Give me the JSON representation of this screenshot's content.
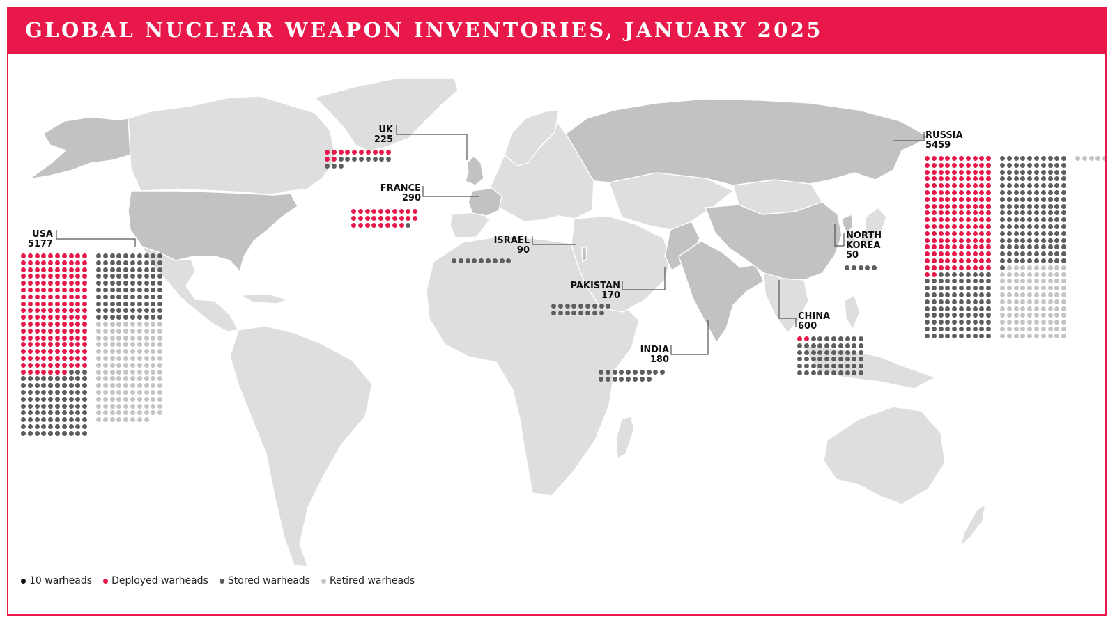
{
  "title": "GLOBAL NUCLEAR WEAPON INVENTORIES, JANUARY 2025",
  "colors": {
    "brand": "#e8194a",
    "deployed": "#e8194a",
    "stored": "#5e5e5e",
    "retired": "#c4c4c4",
    "land": "#dedede",
    "nuclear_state_land": "#c2c2c2"
  },
  "legend": [
    {
      "label": "10 warheads",
      "color": "#111111"
    },
    {
      "label": "Deployed warheads",
      "color": "#e8194a"
    },
    {
      "label": "Stored warheads",
      "color": "#5e5e5e"
    },
    {
      "label": "Retired warheads",
      "color": "#c4c4c4"
    }
  ],
  "countries": [
    {
      "id": "usa",
      "name": "USA",
      "total": "5177",
      "name_lines": [
        "USA"
      ],
      "deployed": 1770,
      "stored": 1930,
      "retired": 1477
    },
    {
      "id": "uk",
      "name": "UK",
      "total": "225",
      "name_lines": [
        "UK"
      ],
      "deployed": 120,
      "stored": 105,
      "retired": 0
    },
    {
      "id": "france",
      "name": "FRANCE",
      "total": "290",
      "name_lines": [
        "FRANCE"
      ],
      "deployed": 280,
      "stored": 10,
      "retired": 0
    },
    {
      "id": "israel",
      "name": "ISRAEL",
      "total": "90",
      "name_lines": [
        "ISRAEL"
      ],
      "deployed": 0,
      "stored": 90,
      "retired": 0
    },
    {
      "id": "pakistan",
      "name": "PAKISTAN",
      "total": "170",
      "name_lines": [
        "PAKISTAN"
      ],
      "deployed": 0,
      "stored": 170,
      "retired": 0
    },
    {
      "id": "india",
      "name": "INDIA",
      "total": "180",
      "name_lines": [
        "INDIA"
      ],
      "deployed": 0,
      "stored": 180,
      "retired": 0
    },
    {
      "id": "china",
      "name": "CHINA",
      "total": "600",
      "name_lines": [
        "CHINA"
      ],
      "deployed": 24,
      "stored": 576,
      "retired": 0
    },
    {
      "id": "north_korea",
      "name": "NORTH KOREA",
      "total": "50",
      "name_lines": [
        "NORTH",
        "KOREA"
      ],
      "deployed": 0,
      "stored": 50,
      "retired": 0
    },
    {
      "id": "russia",
      "name": "RUSSIA",
      "total": "5459",
      "name_lines": [
        "RUSSIA"
      ],
      "deployed": 1718,
      "stored": 2591,
      "retired": 1150
    }
  ]
}
